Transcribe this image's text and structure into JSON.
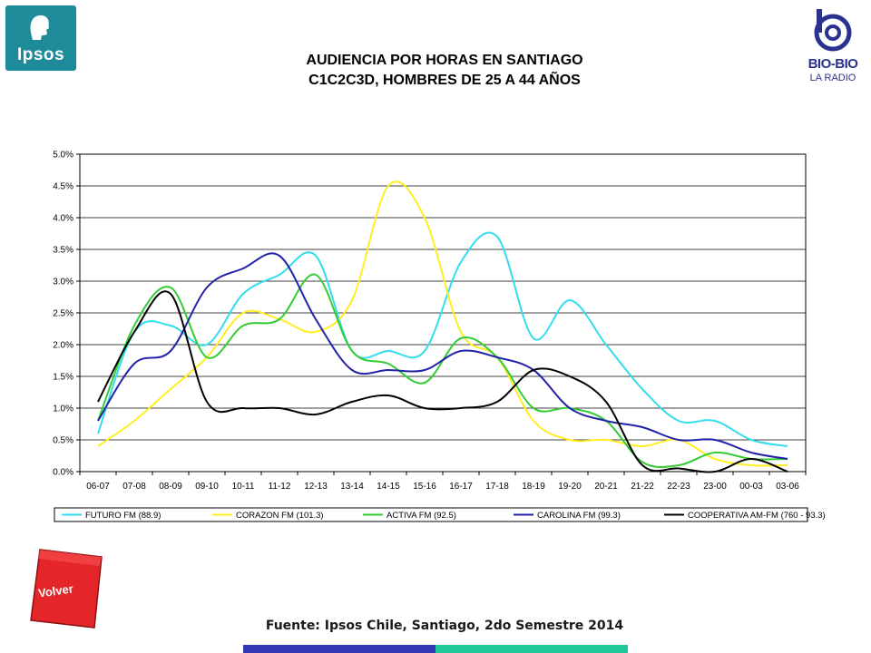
{
  "logos": {
    "ipsos": "Ipsos",
    "biobio_brand": "BIO-BIO",
    "biobio_sub": "LA RADIO"
  },
  "title": {
    "line1": "AUDIENCIA POR HORAS EN SANTIAGO",
    "line2": "C1C2C3D, HOMBRES DE 25 A 44 AÑOS"
  },
  "volver_label": "Volver",
  "source": "Fuente: Ipsos Chile, Santiago, 2do Semestre 2014",
  "colors": {
    "ipsos_bg": "#1f8a9a",
    "biobio": "#2a3290",
    "volver": "#e4262b",
    "bar_blue": "#3339b3",
    "bar_teal": "#22c79a"
  },
  "chart_data": {
    "type": "line",
    "title": "",
    "xlabel": "",
    "ylabel": "",
    "categories": [
      "06-07",
      "07-08",
      "08-09",
      "09-10",
      "10-11",
      "11-12",
      "12-13",
      "13-14",
      "14-15",
      "15-16",
      "16-17",
      "17-18",
      "18-19",
      "19-20",
      "20-21",
      "21-22",
      "22-23",
      "23-00",
      "00-03",
      "03-06"
    ],
    "ylim": [
      0,
      5.0
    ],
    "yticks": [
      "0.0%",
      "0.5%",
      "1.0%",
      "1.5%",
      "2.0%",
      "2.5%",
      "3.0%",
      "3.5%",
      "4.0%",
      "4.5%",
      "5.0%"
    ],
    "grid": true,
    "legend_position": "bottom",
    "series": [
      {
        "name": "FUTURO FM (88.9)",
        "color": "#33ddee",
        "values": [
          0.6,
          2.2,
          2.3,
          2.0,
          2.8,
          3.1,
          3.4,
          1.9,
          1.9,
          1.9,
          3.3,
          3.7,
          2.1,
          2.7,
          2.0,
          1.3,
          0.8,
          0.8,
          0.5,
          0.4
        ]
      },
      {
        "name": "CORAZON FM (101.3)",
        "color": "#ffee22",
        "values": [
          0.4,
          0.8,
          1.3,
          1.8,
          2.5,
          2.4,
          2.2,
          2.7,
          4.5,
          4.0,
          2.2,
          1.8,
          0.8,
          0.5,
          0.5,
          0.4,
          0.5,
          0.2,
          0.1,
          0.1
        ]
      },
      {
        "name": "ACTIVA FM (92.5)",
        "color": "#33cc33",
        "values": [
          0.8,
          2.3,
          2.9,
          1.8,
          2.3,
          2.4,
          3.1,
          1.9,
          1.7,
          1.4,
          2.1,
          1.8,
          1.0,
          1.0,
          0.8,
          0.15,
          0.1,
          0.3,
          0.2,
          0.2
        ]
      },
      {
        "name": "CAROLINA FM (99.3)",
        "color": "#2222aa",
        "values": [
          0.8,
          1.7,
          1.9,
          2.9,
          3.2,
          3.4,
          2.4,
          1.6,
          1.6,
          1.6,
          1.9,
          1.8,
          1.6,
          1.0,
          0.8,
          0.7,
          0.5,
          0.5,
          0.3,
          0.2
        ]
      },
      {
        "name": "COOPERATIVA AM-FM (760 - 93.3)",
        "color": "#000000",
        "values": [
          1.1,
          2.2,
          2.8,
          1.1,
          1.0,
          1.0,
          0.9,
          1.1,
          1.2,
          1.0,
          1.0,
          1.1,
          1.6,
          1.5,
          1.1,
          0.1,
          0.05,
          0.0,
          0.2,
          0.0
        ]
      }
    ]
  }
}
